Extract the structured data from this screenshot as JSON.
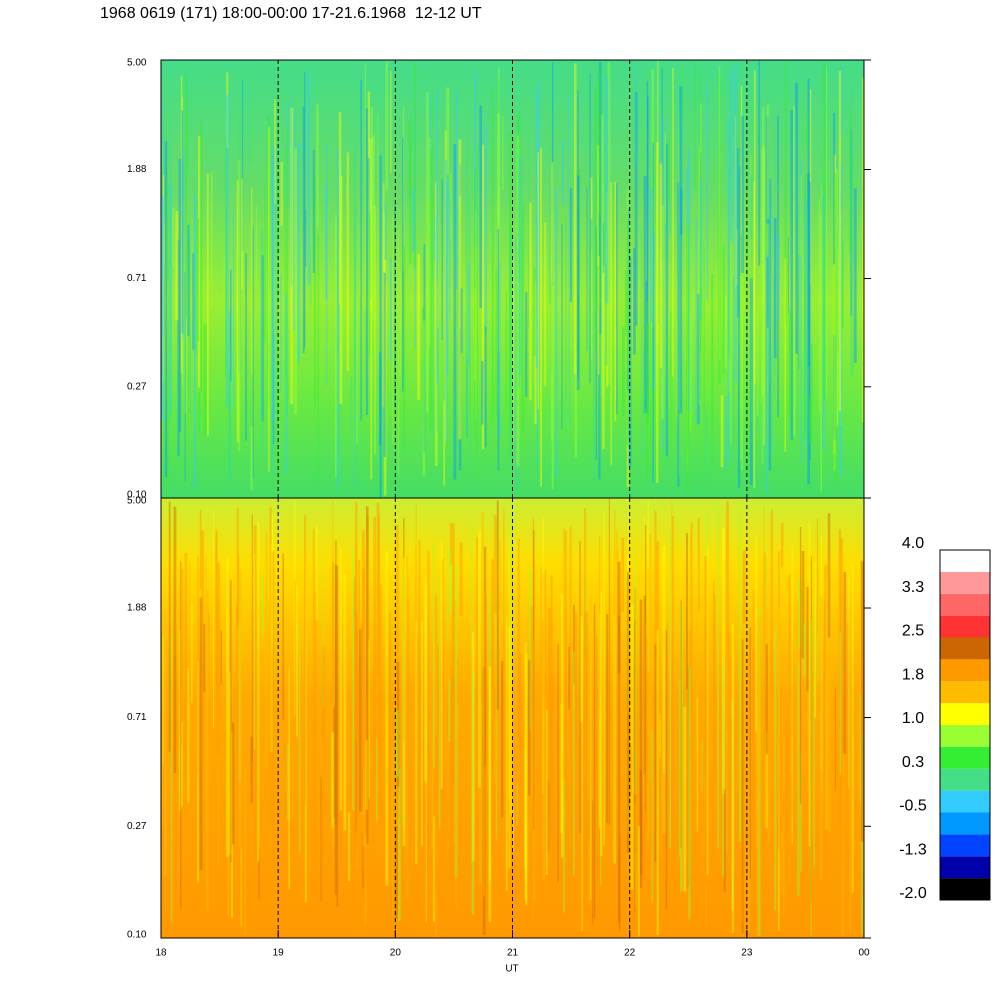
{
  "chart_data": [
    {
      "type": "heatmap",
      "title": "1968 0619 (171) 18:00-00:00 17-21.6.1968  12-12 UT",
      "log_y": true,
      "ylim": [
        0.1,
        5.0
      ],
      "yticks": [
        {
          "value": 0.1,
          "label": "0.10"
        },
        0.27,
        0.71,
        1.88,
        {
          "value": 5.0,
          "label": "5.00"
        }
      ]
    },
    {
      "type": "heatmap",
      "log_y": true,
      "ylim": [
        0.1,
        5.0
      ],
      "yticks": [
        {
          "value": 0.1,
          "label": "0.10"
        },
        0.27,
        0.71,
        1.88,
        {
          "value": 5.0,
          "label": "5.00"
        }
      ],
      "xlabel": "UT",
      "xlim": [
        18,
        24
      ],
      "xticks": [
        18,
        19,
        20,
        21,
        22,
        23,
        {
          "value": 24,
          "label": "00"
        }
      ],
      "colorbar": {
        "lim": [
          -2,
          4
        ],
        "colors": [
          "#000000",
          "#0000aa",
          "#0044ff",
          "#0099ff",
          "#33ccff",
          "#44dd88",
          "#33ee33",
          "#99ff33",
          "#ffff00",
          "#ffbb00",
          "#ff9900",
          "#cc6600",
          "#ff3333",
          "#ff6666",
          "#ff9999",
          "#ffffff"
        ],
        "ticks": [
          {
            "value": -2,
            "label": "-2.0"
          },
          {
            "value": -1.25,
            "label": "-1.3"
          },
          {
            "value": -0.5,
            "label": "-0.5"
          },
          {
            "value": 0.25,
            "label": "0.3"
          },
          {
            "value": 1,
            "label": "1.0"
          },
          {
            "value": 1.75,
            "label": "1.8"
          },
          {
            "value": 2.5,
            "label": "2.5"
          },
          {
            "value": 3.25,
            "label": "3.3"
          },
          {
            "value": 4,
            "label": "4.0"
          }
        ]
      }
    }
  ]
}
